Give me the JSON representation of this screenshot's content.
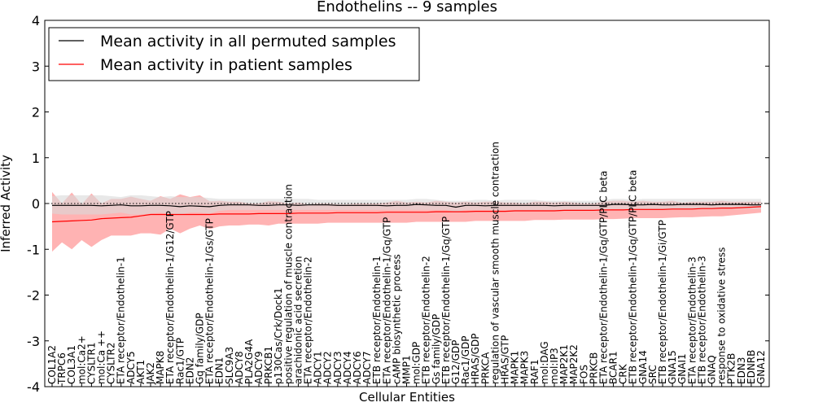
{
  "chart_data": {
    "type": "line",
    "title": "Endothelins -- 9 samples",
    "xlabel": "Cellular Entities",
    "ylabel": "Inferred Activity",
    "ylim": [
      -4,
      4
    ],
    "yticks": [
      -4,
      -3,
      -2,
      -1,
      0,
      1,
      2,
      3,
      4
    ],
    "legend_position": "top-left",
    "colors": {
      "permuted": "#000000",
      "patient": "#ff0000",
      "permuted_band": "#d8d8d8",
      "patient_band": "#ff9a9a"
    },
    "categories": [
      "COL1A2",
      "TRPC6",
      "COL3A1",
      "mol:Ca2+",
      "CYSLTR1",
      "mol:Ca ++",
      "CYSLTR2",
      "ETA receptor/Endothelin-1",
      "ADCY5",
      "AKT1",
      "JAK2",
      "MAPK8",
      "ETA receptor/Endothelin-1/G12/GTP",
      "Rac1/GTP",
      "EDN2",
      "Gq family/GDP",
      "ETA receptor/Endothelin-1/Gs/GTP",
      "EDN1",
      "SLC9A3",
      "ADCY8",
      "PLA2G4A",
      "ADCY9",
      "PRKCB1",
      "p130Cas/Crk/Dock1",
      "positive regulation of muscle contraction",
      "arachidonic acid secretion",
      "ETA receptor/Endothelin-2",
      "ADCY1",
      "ADCY2",
      "ADCY3",
      "ADCY4",
      "ADCY6",
      "ADCY7",
      "ETB receptor/Endothelin-1",
      "ETA receptor/Endothelin-1/Gq/GTP",
      "cAMP biosynthetic process",
      "MMP1",
      "mol:GDP",
      "ETB receptor/Endothelin-2",
      "Gs family/GDP",
      "ETB receptor/Endothelin-1/Gq/GTP",
      "G12/GDP",
      "Rac1/GDP",
      "HRAS/GDP",
      "PRKCA",
      "regulation of vascular smooth muscle contraction",
      "HRAS/GTP",
      "MAPK1",
      "MAPK3",
      "RAF1",
      "mol:DAG",
      "mol:IP3",
      "MAP2K1",
      "MAP2K2",
      "FOS",
      "PRKCB",
      "ETA receptor/Endothelin-1/Gq/GTP/PLC beta",
      "BCAR1",
      "CRK",
      "ETB receptor/Endothelin-1/Gq/GTP/PLC beta",
      "GNA14",
      "SRC",
      "ETB receptor/Endothelin-1/Gi/GTP",
      "GNA15",
      "GNAI1",
      "ETA receptor/Endothelin-3",
      "ETB receptor/Endothelin-3",
      "GNAQ",
      "response to oxidative stress",
      "PTK2B",
      "EDN3",
      "EDNRB",
      "GNA12"
    ],
    "series": [
      {
        "name": "Mean activity in all permuted samples",
        "mean": [
          -0.04,
          -0.04,
          -0.04,
          -0.04,
          -0.04,
          -0.05,
          -0.04,
          -0.03,
          -0.05,
          -0.05,
          -0.04,
          -0.04,
          -0.05,
          -0.07,
          -0.05,
          -0.06,
          -0.07,
          -0.04,
          -0.03,
          -0.03,
          -0.03,
          -0.04,
          -0.04,
          -0.03,
          -0.03,
          -0.04,
          -0.03,
          -0.03,
          -0.03,
          -0.04,
          -0.04,
          -0.04,
          -0.04,
          -0.04,
          -0.05,
          -0.04,
          -0.04,
          -0.02,
          -0.03,
          -0.04,
          -0.04,
          -0.08,
          -0.04,
          -0.04,
          -0.05,
          -0.04,
          -0.04,
          -0.04,
          -0.04,
          -0.04,
          -0.04,
          -0.05,
          -0.04,
          -0.04,
          -0.04,
          -0.04,
          -0.04,
          -0.02,
          -0.02,
          -0.03,
          -0.03,
          -0.02,
          -0.03,
          -0.03,
          -0.02,
          -0.02,
          -0.02,
          -0.03,
          -0.02,
          -0.02,
          -0.02,
          -0.03,
          -0.03
        ],
        "upper": [
          0.16,
          0.18,
          0.18,
          0.18,
          0.18,
          0.18,
          0.16,
          0.14,
          0.18,
          0.18,
          0.16,
          0.14,
          0.16,
          0.14,
          0.14,
          0.14,
          0.12,
          0.1,
          0.1,
          0.1,
          0.1,
          0.1,
          0.1,
          0.1,
          0.1,
          0.1,
          0.1,
          0.08,
          0.08,
          0.08,
          0.08,
          0.08,
          0.08,
          0.08,
          0.08,
          0.08,
          0.08,
          0.1,
          0.1,
          0.08,
          0.06,
          0.06,
          0.06,
          0.08,
          0.08,
          0.06,
          0.08,
          0.08,
          0.08,
          0.08,
          0.06,
          0.06,
          0.06,
          0.06,
          0.06,
          0.06,
          0.08,
          0.1,
          0.1,
          0.08,
          0.1,
          0.1,
          0.1,
          0.1,
          0.1,
          0.1,
          0.1,
          0.1,
          0.1,
          0.1,
          0.1,
          0.1,
          0.1
        ],
        "lower": [
          -0.22,
          -0.24,
          -0.24,
          -0.24,
          -0.24,
          -0.24,
          -0.22,
          -0.2,
          -0.24,
          -0.24,
          -0.22,
          -0.2,
          -0.24,
          -0.24,
          -0.2,
          -0.2,
          -0.22,
          -0.16,
          -0.14,
          -0.14,
          -0.14,
          -0.14,
          -0.14,
          -0.14,
          -0.14,
          -0.14,
          -0.14,
          -0.14,
          -0.14,
          -0.14,
          -0.14,
          -0.14,
          -0.14,
          -0.14,
          -0.14,
          -0.14,
          -0.14,
          -0.14,
          -0.14,
          -0.14,
          -0.14,
          -0.18,
          -0.14,
          -0.14,
          -0.14,
          -0.14,
          -0.14,
          -0.14,
          -0.14,
          -0.14,
          -0.14,
          -0.14,
          -0.14,
          -0.14,
          -0.14,
          -0.14,
          -0.14,
          -0.12,
          -0.12,
          -0.12,
          -0.12,
          -0.12,
          -0.12,
          -0.12,
          -0.12,
          -0.12,
          -0.12,
          -0.12,
          -0.12,
          -0.12,
          -0.12,
          -0.12,
          -0.12
        ]
      },
      {
        "name": "Mean activity in patient samples",
        "mean": [
          -0.4,
          -0.39,
          -0.38,
          -0.37,
          -0.36,
          -0.33,
          -0.32,
          -0.31,
          -0.3,
          -0.27,
          -0.24,
          -0.24,
          -0.24,
          -0.24,
          -0.24,
          -0.24,
          -0.24,
          -0.23,
          -0.23,
          -0.23,
          -0.23,
          -0.22,
          -0.22,
          -0.22,
          -0.22,
          -0.21,
          -0.21,
          -0.21,
          -0.21,
          -0.2,
          -0.2,
          -0.2,
          -0.2,
          -0.2,
          -0.19,
          -0.19,
          -0.19,
          -0.19,
          -0.19,
          -0.18,
          -0.18,
          -0.18,
          -0.18,
          -0.17,
          -0.17,
          -0.17,
          -0.17,
          -0.16,
          -0.16,
          -0.16,
          -0.16,
          -0.16,
          -0.15,
          -0.15,
          -0.15,
          -0.15,
          -0.14,
          -0.14,
          -0.14,
          -0.13,
          -0.13,
          -0.13,
          -0.13,
          -0.12,
          -0.12,
          -0.12,
          -0.11,
          -0.11,
          -0.1,
          -0.1,
          -0.09,
          -0.08,
          -0.07
        ],
        "upper": [
          0.25,
          0.0,
          0.24,
          -0.02,
          0.22,
          0.0,
          0.1,
          0.1,
          0.15,
          0.1,
          0.06,
          0.16,
          0.1,
          0.2,
          0.14,
          0.18,
          0.05,
          0.06,
          0.04,
          0.04,
          0.0,
          0.0,
          0.05,
          0.04,
          0.0,
          0.02,
          -0.02,
          0.0,
          0.0,
          -0.02,
          -0.02,
          0.0,
          0.0,
          0.0,
          0.02,
          0.06,
          0.02,
          0.04,
          0.02,
          0.06,
          0.04,
          0.02,
          0.04,
          0.02,
          0.04,
          0.04,
          0.02,
          0.02,
          0.0,
          0.04,
          0.04,
          0.02,
          0.04,
          0.02,
          0.0,
          0.0,
          0.04,
          0.06,
          0.06,
          0.04,
          0.06,
          0.04,
          0.04,
          0.06,
          0.02,
          0.04,
          0.04,
          0.04,
          0.06,
          0.04,
          0.04,
          0.04,
          0.04
        ],
        "lower": [
          -1.05,
          -0.85,
          -1.0,
          -0.8,
          -0.95,
          -0.8,
          -0.7,
          -0.7,
          -0.7,
          -0.65,
          -0.65,
          -0.68,
          -0.55,
          -0.65,
          -0.55,
          -0.48,
          -0.56,
          -0.5,
          -0.48,
          -0.48,
          -0.46,
          -0.46,
          -0.48,
          -0.44,
          -0.44,
          -0.44,
          -0.44,
          -0.44,
          -0.42,
          -0.42,
          -0.42,
          -0.42,
          -0.42,
          -0.42,
          -0.42,
          -0.42,
          -0.42,
          -0.4,
          -0.4,
          -0.4,
          -0.4,
          -0.4,
          -0.4,
          -0.38,
          -0.38,
          -0.38,
          -0.38,
          -0.38,
          -0.38,
          -0.36,
          -0.36,
          -0.36,
          -0.35,
          -0.35,
          -0.35,
          -0.35,
          -0.34,
          -0.34,
          -0.33,
          -0.32,
          -0.32,
          -0.32,
          -0.32,
          -0.31,
          -0.3,
          -0.3,
          -0.29,
          -0.28,
          -0.28,
          -0.26,
          -0.24,
          -0.22,
          -0.2
        ]
      }
    ]
  }
}
